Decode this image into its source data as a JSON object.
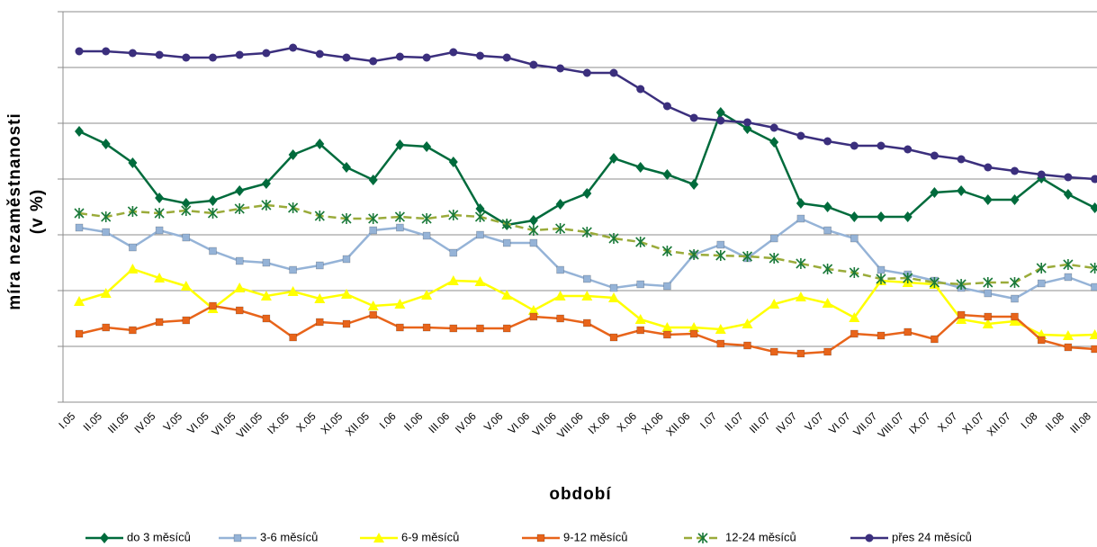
{
  "chart_data": {
    "type": "line",
    "x_label": "období",
    "y_label": [
      "míra nezaměstnanosti",
      "(v %)"
    ],
    "categories": [
      "I.05",
      "II.05",
      "III.05",
      "IV.05",
      "V.05",
      "VI.05",
      "VII.05",
      "VIII.05",
      "IX.05",
      "X.05",
      "XI.05",
      "XII.05",
      "I.06",
      "II.06",
      "III.06",
      "IV.06",
      "V.06",
      "VI.06",
      "VII.06",
      "VIII.06",
      "IX.06",
      "X.06",
      "XI.06",
      "XII.06",
      "I.07",
      "II.07",
      "III.07",
      "IV.07",
      "V.07",
      "VI.07",
      "VII.07",
      "VIII.07",
      "IX.07",
      "X.07",
      "XI.07",
      "XII.07",
      "I.08",
      "II.08",
      "III.08"
    ],
    "ylim": [
      0,
      434
    ],
    "yticks": [
      0,
      62,
      124,
      186,
      248,
      310,
      372,
      434
    ],
    "grid": true,
    "legend": "bottom",
    "series": [
      {
        "name": "do 3 měsíců",
        "color": "#006b3c",
        "marker": "diamond",
        "values": [
          301,
          287,
          266,
          227,
          221,
          224,
          235,
          243,
          275,
          287,
          261,
          247,
          286,
          284,
          267,
          215,
          197,
          202,
          220,
          232,
          271,
          261,
          253,
          242,
          322,
          304,
          289,
          221,
          217,
          206,
          206,
          206,
          233,
          235,
          225,
          225,
          249,
          231,
          216
        ]
      },
      {
        "name": "3-6 měsíců",
        "color": "#95b3d7",
        "marker": "square",
        "values": [
          194,
          189,
          172,
          191,
          183,
          168,
          157,
          155,
          147,
          152,
          159,
          191,
          194,
          185,
          166,
          186,
          177,
          177,
          147,
          137,
          127,
          131,
          129,
          164,
          175,
          160,
          182,
          204,
          191,
          182,
          147,
          142,
          135,
          127,
          121,
          115,
          132,
          139,
          128
        ]
      },
      {
        "name": "6-9 měsíců",
        "color": "#ffff00",
        "marker": "triangle",
        "values": [
          112,
          121,
          148,
          138,
          129,
          104,
          127,
          118,
          123,
          115,
          120,
          107,
          109,
          119,
          135,
          134,
          119,
          102,
          118,
          118,
          116,
          92,
          83,
          83,
          81,
          87,
          109,
          117,
          110,
          94,
          135,
          133,
          131,
          92,
          87,
          90,
          75,
          74,
          75
        ]
      },
      {
        "name": "9-12 měsíců",
        "color": "#e8641a",
        "marker": "square",
        "values": [
          76,
          83,
          80,
          89,
          91,
          107,
          102,
          93,
          72,
          89,
          87,
          97,
          83,
          83,
          82,
          82,
          82,
          95,
          93,
          88,
          72,
          80,
          75,
          76,
          65,
          63,
          56,
          54,
          56,
          76,
          74,
          78,
          70,
          97,
          95,
          95,
          69,
          61,
          59
        ]
      },
      {
        "name": "12-24 měsíců",
        "color": "#9aab3a",
        "marker": "star",
        "dash": true,
        "values": [
          210,
          206,
          212,
          210,
          213,
          210,
          215,
          219,
          216,
          207,
          204,
          204,
          206,
          204,
          208,
          206,
          198,
          191,
          193,
          189,
          182,
          178,
          168,
          164,
          163,
          162,
          160,
          154,
          148,
          144,
          137,
          138,
          133,
          131,
          133,
          133,
          149,
          153,
          149
        ]
      },
      {
        "name": "přes 24 měsíců",
        "color": "#3b2f7d",
        "marker": "circle",
        "values": [
          390,
          390,
          388,
          386,
          383,
          383,
          386,
          388,
          394,
          387,
          383,
          379,
          384,
          383,
          389,
          385,
          383,
          375,
          371,
          366,
          366,
          348,
          329,
          316,
          313,
          311,
          305,
          296,
          290,
          285,
          285,
          281,
          274,
          270,
          261,
          257,
          253,
          250,
          248
        ]
      }
    ]
  }
}
